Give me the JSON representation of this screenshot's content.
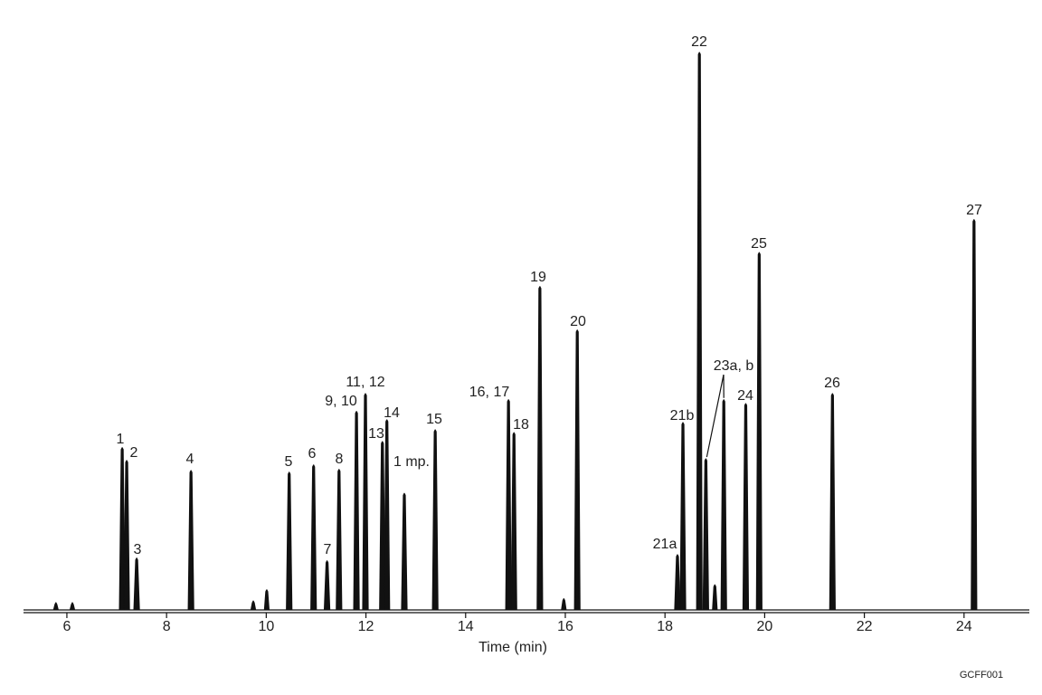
{
  "chart_data": {
    "type": "chromatogram",
    "x_label": "Time (min)",
    "code": "GCFF001",
    "xlim": [
      5.13,
      25.31
    ],
    "ylim": [
      0,
      100
    ],
    "xticks": [
      6,
      8,
      10,
      12,
      14,
      16,
      18,
      20,
      22,
      24
    ],
    "color": "#111111",
    "x": [
      5.78,
      6.11,
      7.11,
      7.2,
      7.4,
      8.49,
      9.74,
      10.01,
      10.46,
      10.95,
      11.22,
      11.46,
      11.81,
      11.99,
      12.33,
      12.42,
      12.77,
      13.39,
      14.86,
      14.97,
      15.49,
      15.97,
      16.24,
      18.25,
      18.36,
      18.69,
      18.82,
      19.0,
      19.18,
      19.62,
      19.89,
      21.36,
      24.2
    ],
    "values": [
      1.3,
      1.3,
      29.1,
      26.8,
      9.3,
      25.0,
      1.6,
      3.6,
      24.7,
      26.0,
      8.8,
      25.2,
      35.6,
      38.8,
      30.2,
      34.1,
      20.9,
      32.3,
      37.7,
      31.8,
      58.0,
      2.0,
      50.2,
      9.9,
      33.6,
      100,
      27.1,
      4.5,
      37.7,
      37.0,
      64.1,
      38.8,
      70.0
    ],
    "peak_labels": [
      null,
      null,
      "1",
      "2",
      "3",
      "4",
      null,
      null,
      "5",
      "6",
      "7",
      "8",
      "9, 10",
      "11, 12",
      "13",
      "14",
      "1 mp.",
      "15",
      "16, 17",
      "18",
      "19",
      null,
      "20",
      "21a",
      "21b",
      "22",
      "23a, b",
      null,
      null,
      "24",
      "25",
      "26",
      "27"
    ]
  }
}
